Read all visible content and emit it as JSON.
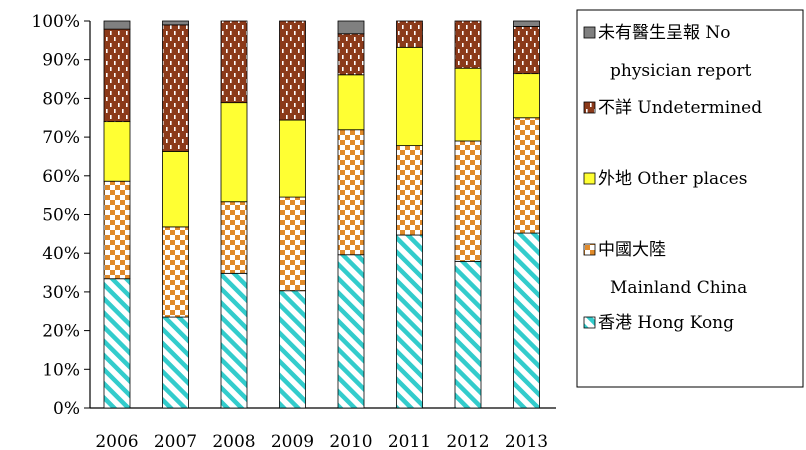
{
  "chart_data": {
    "type": "bar",
    "stacked": true,
    "categories": [
      "2006",
      "2007",
      "2008",
      "2009",
      "2010",
      "2011",
      "2012",
      "2013"
    ],
    "series": [
      {
        "name": "香港 Hong Kong",
        "name_lines": [
          "香港 Hong Kong"
        ],
        "color": "#33cccc",
        "pattern": "diagonal-stripes",
        "values": [
          33.4,
          23.5,
          34.8,
          30.3,
          39.6,
          44.7,
          37.9,
          45.2
        ]
      },
      {
        "name": "中國大陸 Mainland China",
        "name_lines": [
          "中國大陸",
          "Mainland China"
        ],
        "color": "#e08a2a",
        "pattern": "checker",
        "values": [
          25.2,
          23.3,
          18.5,
          24.2,
          32.3,
          23.1,
          31.1,
          29.8
        ]
      },
      {
        "name": "外地 Other places",
        "name_lines": [
          "外地 Other places"
        ],
        "color": "#ffff33",
        "pattern": "solid",
        "values": [
          15.4,
          19.5,
          25.6,
          19.9,
          14.2,
          25.4,
          18.8,
          11.4
        ]
      },
      {
        "name": "不詳 Undetermined",
        "name_lines": [
          "不詳 Undetermined"
        ],
        "color": "#8b3a1a",
        "pattern": "dashes",
        "values": [
          23.9,
          32.7,
          21.1,
          25.6,
          10.6,
          6.8,
          12.2,
          12.2
        ]
      },
      {
        "name": "未有醫生呈報 No physician report",
        "name_lines": [
          "未有醫生呈報 No",
          "physician report"
        ],
        "color": "#808080",
        "pattern": "solid",
        "values": [
          2.1,
          1.0,
          0.0,
          0.0,
          3.3,
          0.0,
          0.0,
          1.4
        ]
      }
    ],
    "y_ticks": [
      "0%",
      "10%",
      "20%",
      "30%",
      "40%",
      "50%",
      "60%",
      "70%",
      "80%",
      "90%",
      "100%"
    ],
    "ylim": [
      0,
      100
    ],
    "grid": false,
    "legend_position": "right"
  }
}
